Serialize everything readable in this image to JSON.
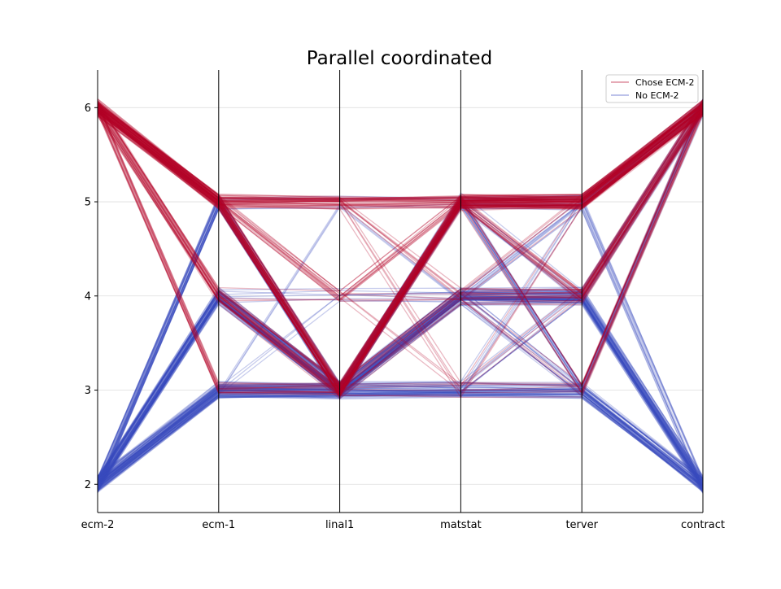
{
  "chart_data": {
    "type": "parallel-coordinates",
    "title": "Parallel coordinated",
    "axes": [
      "ecm-2",
      "ecm-1",
      "linal1",
      "matstat",
      "terver",
      "contract"
    ],
    "ylim": [
      1.7,
      6.4
    ],
    "yticks": [
      2,
      3,
      4,
      5,
      6
    ],
    "grid": true,
    "legend_position": "top-right",
    "series": [
      {
        "name": "Chose ECM-2",
        "color": "#b40426",
        "paths": [
          {
            "values": [
              6,
              5,
              5,
              5,
              5,
              6
            ],
            "weight": 30
          },
          {
            "values": [
              6,
              5,
              3,
              5,
              5,
              6
            ],
            "weight": 25
          },
          {
            "values": [
              6,
              5,
              3,
              5,
              4,
              6
            ],
            "weight": 15
          },
          {
            "values": [
              6,
              4,
              3,
              5,
              5,
              6
            ],
            "weight": 18
          },
          {
            "values": [
              6,
              4,
              3,
              4,
              4,
              6
            ],
            "weight": 10
          },
          {
            "values": [
              6,
              3,
              3,
              5,
              5,
              6
            ],
            "weight": 12
          },
          {
            "values": [
              6,
              5,
              4,
              5,
              5,
              6
            ],
            "weight": 8
          },
          {
            "values": [
              6,
              5,
              5,
              4,
              4,
              6
            ],
            "weight": 6
          },
          {
            "values": [
              6,
              5,
              5,
              3,
              3,
              6
            ],
            "weight": 4
          },
          {
            "values": [
              6,
              5,
              4,
              4,
              3,
              6
            ],
            "weight": 4
          },
          {
            "values": [
              6,
              4,
              4,
              5,
              3,
              6
            ],
            "weight": 3
          },
          {
            "values": [
              6,
              5,
              3,
              4,
              5,
              6
            ],
            "weight": 5
          },
          {
            "values": [
              6,
              5,
              3,
              3,
              5,
              6
            ],
            "weight": 3
          },
          {
            "values": [
              6,
              3,
              3,
              3,
              3,
              6
            ],
            "weight": 3
          },
          {
            "values": [
              6,
              5,
              5,
              5,
              3,
              6
            ],
            "weight": 3
          },
          {
            "values": [
              6,
              5,
              4,
              3,
              4,
              6
            ],
            "weight": 3
          }
        ]
      },
      {
        "name": "No ECM-2",
        "color": "#3b4cc0",
        "paths": [
          {
            "values": [
              2,
              3,
              3,
              3,
              3,
              2
            ],
            "weight": 30
          },
          {
            "values": [
              2,
              4,
              3,
              4,
              4,
              2
            ],
            "weight": 25
          },
          {
            "values": [
              2,
              3,
              3,
              4,
              4,
              2
            ],
            "weight": 20
          },
          {
            "values": [
              2,
              5,
              3,
              4,
              4,
              2
            ],
            "weight": 15
          },
          {
            "values": [
              2,
              4,
              3,
              5,
              5,
              6
            ],
            "weight": 12
          },
          {
            "values": [
              2,
              3,
              3,
              3,
              3,
              6
            ],
            "weight": 10
          },
          {
            "values": [
              2,
              4,
              3,
              4,
              3,
              2
            ],
            "weight": 10
          },
          {
            "values": [
              2,
              3,
              3,
              5,
              3,
              2
            ],
            "weight": 8
          },
          {
            "values": [
              2,
              4,
              3,
              3,
              4,
              6
            ],
            "weight": 8
          },
          {
            "values": [
              2,
              5,
              3,
              5,
              4,
              6
            ],
            "weight": 8
          },
          {
            "values": [
              2,
              4,
              4,
              4,
              4,
              6
            ],
            "weight": 6
          },
          {
            "values": [
              2,
              5,
              5,
              5,
              5,
              2
            ],
            "weight": 5
          },
          {
            "values": [
              2,
              3,
              3,
              4,
              5,
              6
            ],
            "weight": 6
          },
          {
            "values": [
              2,
              4,
              3,
              5,
              3,
              6
            ],
            "weight": 6
          },
          {
            "values": [
              2,
              3,
              5,
              4,
              5,
              2
            ],
            "weight": 3
          },
          {
            "values": [
              2,
              4,
              3,
              3,
              5,
              2
            ],
            "weight": 4
          },
          {
            "values": [
              2,
              3,
              4,
              4,
              3,
              2
            ],
            "weight": 3
          },
          {
            "values": [
              2,
              5,
              3,
              3,
              3,
              2
            ],
            "weight": 4
          }
        ]
      }
    ]
  }
}
